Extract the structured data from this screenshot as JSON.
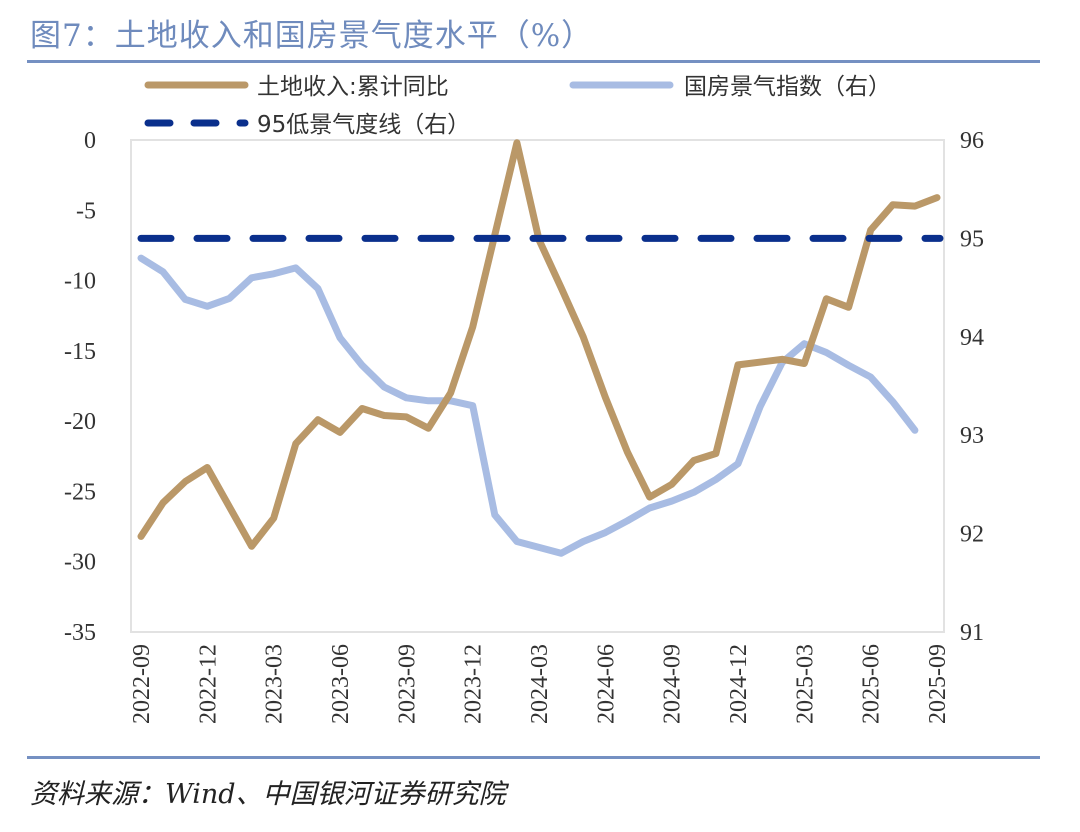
{
  "title": "图7：土地收入和国房景气度水平（%）",
  "source": "资料来源：Wind、中国银河证券研究院",
  "colors": {
    "land": "#ba9868",
    "climate": "#a8bce3",
    "line95": "#0a2f8c",
    "title": "#6f8bbd"
  },
  "chart_data": {
    "type": "line",
    "title": "土地收入和国房景气度水平（%）",
    "x": [
      "2022-09",
      "2022-10",
      "2022-11",
      "2022-12",
      "2023-01",
      "2023-02",
      "2023-03",
      "2023-04",
      "2023-05",
      "2023-06",
      "2023-07",
      "2023-08",
      "2023-09",
      "2023-10",
      "2023-11",
      "2023-12",
      "2024-01",
      "2024-02",
      "2024-03",
      "2024-04",
      "2024-05",
      "2024-06",
      "2024-07",
      "2024-08",
      "2024-09",
      "2024-10",
      "2024-11",
      "2024-12",
      "2025-01",
      "2025-02",
      "2025-03",
      "2025-04",
      "2025-05",
      "2025-06",
      "2025-07",
      "2025-08",
      "2025-09"
    ],
    "x_tick_labels": [
      "2022-09",
      "2022-12",
      "2023-03",
      "2023-06",
      "2023-09",
      "2023-12",
      "2024-03",
      "2024-06",
      "2024-09",
      "2024-12",
      "2025-03",
      "2025-06",
      "2025-09"
    ],
    "left_axis": {
      "ylim": [
        -35,
        0
      ],
      "ticks": [
        "0",
        "-5",
        "-10",
        "-15",
        "-20",
        "-25",
        "-30",
        "-35"
      ]
    },
    "right_axis": {
      "ylim": [
        91,
        96
      ],
      "ticks": [
        "96",
        "95",
        "94",
        "93",
        "92",
        "91"
      ]
    },
    "legend": [
      "土地收入:累计同比",
      "国房景气指数（右）",
      "95低景气度线（右）"
    ],
    "legend_position": "top",
    "series": [
      {
        "name": "土地收入:累计同比",
        "axis": "left",
        "style": "solid",
        "values": [
          -28.2,
          -25.8,
          -24.3,
          -23.3,
          null,
          -28.9,
          -26.9,
          -21.6,
          -19.9,
          -20.8,
          -19.1,
          -19.6,
          -19.7,
          -20.5,
          -18.0,
          -13.3,
          null,
          -0.2,
          -7.1,
          -10.5,
          -14.0,
          -18.3,
          -22.2,
          -25.4,
          -24.5,
          -22.8,
          -22.3,
          -16.0,
          null,
          -15.6,
          -15.9,
          -11.3,
          -11.9,
          -6.4,
          -4.6,
          -4.7,
          -4.1
        ]
      },
      {
        "name": "国房景气指数（右）",
        "axis": "right",
        "style": "solid",
        "values": [
          94.8,
          94.66,
          94.38,
          94.31,
          94.39,
          94.6,
          94.64,
          94.7,
          94.49,
          93.99,
          93.71,
          93.49,
          93.38,
          93.35,
          93.35,
          93.3,
          92.19,
          91.92,
          91.86,
          91.8,
          91.92,
          92.01,
          92.13,
          92.26,
          92.33,
          92.42,
          92.55,
          92.71,
          93.29,
          93.74,
          93.93,
          93.84,
          93.71,
          93.59,
          93.34,
          93.05,
          null
        ]
      },
      {
        "name": "95低景气度线（右）",
        "axis": "right",
        "style": "dashed",
        "values": [
          95,
          95,
          95,
          95,
          95,
          95,
          95,
          95,
          95,
          95,
          95,
          95,
          95,
          95,
          95,
          95,
          95,
          95,
          95,
          95,
          95,
          95,
          95,
          95,
          95,
          95,
          95,
          95,
          95,
          95,
          95,
          95,
          95,
          95,
          95,
          95,
          95
        ]
      }
    ]
  }
}
